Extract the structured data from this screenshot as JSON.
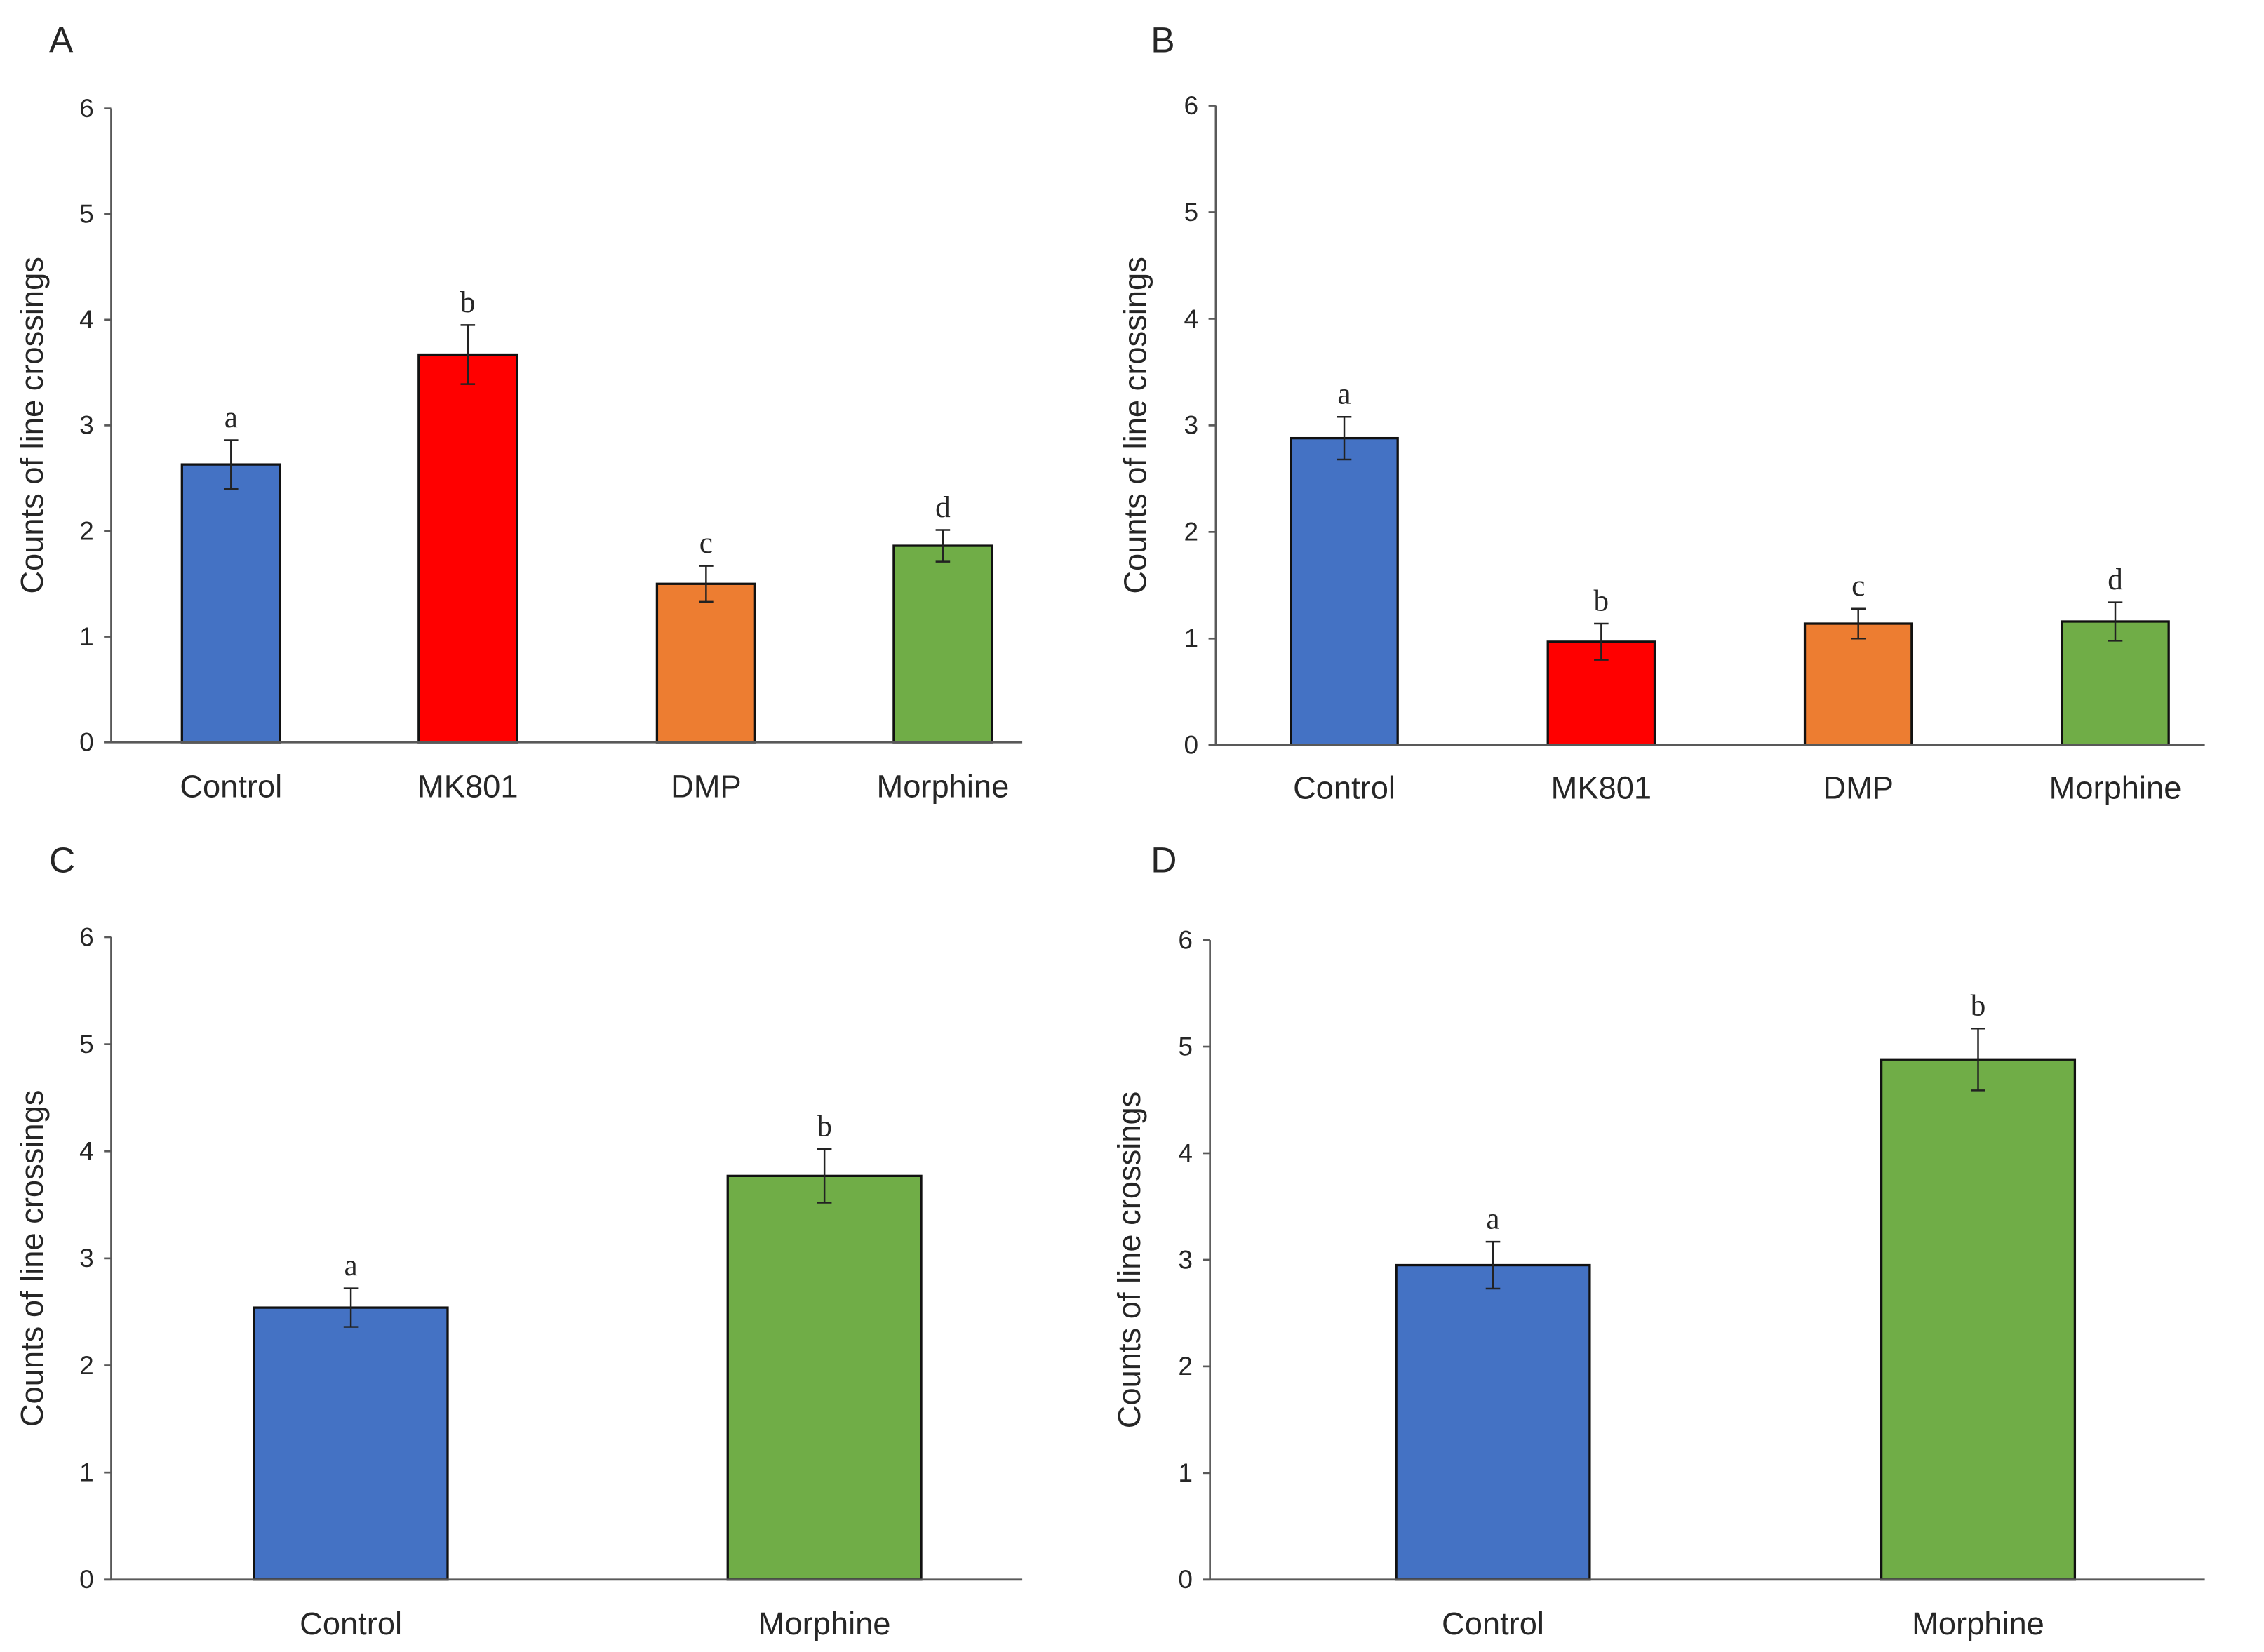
{
  "chart_data": [
    {
      "type": "bar",
      "panel_label": "A",
      "ylabel": "Counts of line crossings",
      "xlabel": "",
      "ylim": [
        0,
        6
      ],
      "yticks": [
        "0",
        "1",
        "2",
        "3",
        "4",
        "5",
        "6"
      ],
      "categories": [
        "Control",
        "MK801",
        "DMP",
        "Morphine"
      ],
      "values": [
        2.63,
        3.67,
        1.5,
        1.86
      ],
      "errors": [
        0.23,
        0.28,
        0.17,
        0.15
      ],
      "significance": [
        "a",
        "b",
        "c",
        "d"
      ],
      "colors": [
        "#4472C4",
        "#FF0000",
        "#ED7D31",
        "#70AD47"
      ]
    },
    {
      "type": "bar",
      "panel_label": "B",
      "ylabel": "Counts of line crossings",
      "xlabel": "",
      "ylim": [
        0,
        6
      ],
      "yticks": [
        "0",
        "1",
        "2",
        "3",
        "4",
        "5",
        "6"
      ],
      "categories": [
        "Control",
        "MK801",
        "DMP",
        "Morphine"
      ],
      "values": [
        2.88,
        0.97,
        1.14,
        1.16
      ],
      "errors": [
        0.2,
        0.17,
        0.14,
        0.18
      ],
      "significance": [
        "a",
        "b",
        "c",
        "d"
      ],
      "colors": [
        "#4472C4",
        "#FF0000",
        "#ED7D31",
        "#70AD47"
      ]
    },
    {
      "type": "bar",
      "panel_label": "C",
      "ylabel": "Counts of line crossings",
      "xlabel": "",
      "ylim": [
        0,
        6
      ],
      "yticks": [
        "0",
        "1",
        "2",
        "3",
        "4",
        "5",
        "6"
      ],
      "categories": [
        "Control",
        "Morphine"
      ],
      "values": [
        2.54,
        3.77
      ],
      "errors": [
        0.18,
        0.25
      ],
      "significance": [
        "a",
        "b"
      ],
      "colors": [
        "#4472C4",
        "#70AD47"
      ]
    },
    {
      "type": "bar",
      "panel_label": "D",
      "ylabel": "Counts of line crossings",
      "xlabel": "",
      "ylim": [
        0,
        6
      ],
      "yticks": [
        "0",
        "1",
        "2",
        "3",
        "4",
        "5",
        "6"
      ],
      "categories": [
        "Control",
        "Morphine"
      ],
      "values": [
        2.95,
        4.88
      ],
      "errors": [
        0.22,
        0.29
      ],
      "significance": [
        "a",
        "b"
      ],
      "colors": [
        "#4472C4",
        "#70AD47"
      ]
    }
  ]
}
